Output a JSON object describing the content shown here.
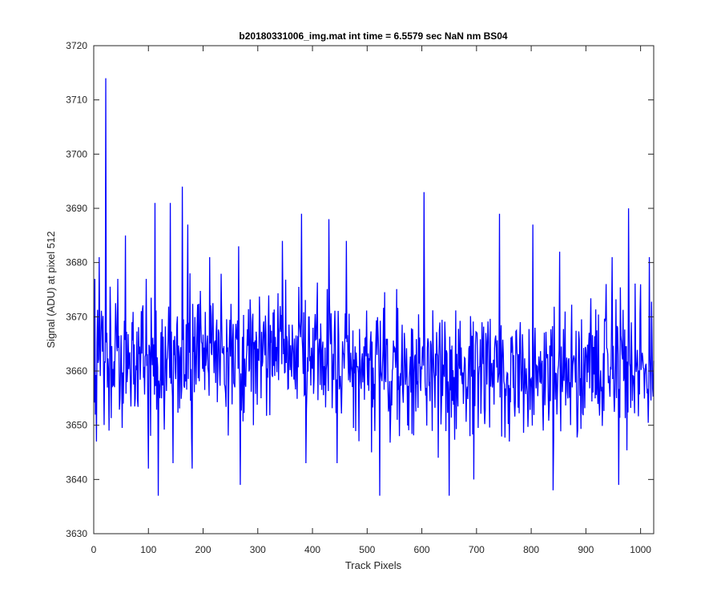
{
  "chart_data": {
    "type": "line",
    "title": "b20180331006_img.mat int time = 6.5579 sec  NaN nm BS04",
    "xlabel": "Track Pixels",
    "ylabel": "Signal (ADU) at pixel 512",
    "xlim": [
      0,
      1024
    ],
    "ylim": [
      3630,
      3720
    ],
    "xticks": [
      0,
      100,
      200,
      300,
      400,
      500,
      600,
      700,
      800,
      900,
      1000
    ],
    "yticks": [
      3630,
      3640,
      3650,
      3660,
      3670,
      3680,
      3690,
      3700,
      3710,
      3720
    ],
    "grid": false,
    "box": true,
    "series": [
      {
        "color": "#0000ff",
        "x_start": 1,
        "x_step": 1,
        "baseline": 3662,
        "noise_amplitude": 6,
        "peaks": [
          {
            "x": 2,
            "y": 3677
          },
          {
            "x": 5,
            "y": 3647
          },
          {
            "x": 10,
            "y": 3681
          },
          {
            "x": 22,
            "y": 3714
          },
          {
            "x": 28,
            "y": 3649
          },
          {
            "x": 44,
            "y": 3677
          },
          {
            "x": 58,
            "y": 3685
          },
          {
            "x": 96,
            "y": 3677
          },
          {
            "x": 100,
            "y": 3642
          },
          {
            "x": 112,
            "y": 3691
          },
          {
            "x": 118,
            "y": 3637
          },
          {
            "x": 140,
            "y": 3691
          },
          {
            "x": 145,
            "y": 3643
          },
          {
            "x": 162,
            "y": 3694
          },
          {
            "x": 172,
            "y": 3687
          },
          {
            "x": 180,
            "y": 3642
          },
          {
            "x": 212,
            "y": 3681
          },
          {
            "x": 265,
            "y": 3683
          },
          {
            "x": 268,
            "y": 3639
          },
          {
            "x": 292,
            "y": 3650
          },
          {
            "x": 312,
            "y": 3665
          },
          {
            "x": 345,
            "y": 3684
          },
          {
            "x": 380,
            "y": 3689
          },
          {
            "x": 388,
            "y": 3643
          },
          {
            "x": 430,
            "y": 3688
          },
          {
            "x": 445,
            "y": 3643
          },
          {
            "x": 462,
            "y": 3684
          },
          {
            "x": 508,
            "y": 3645
          },
          {
            "x": 523,
            "y": 3637
          },
          {
            "x": 555,
            "y": 3651
          },
          {
            "x": 604,
            "y": 3693
          },
          {
            "x": 630,
            "y": 3644
          },
          {
            "x": 650,
            "y": 3637
          },
          {
            "x": 688,
            "y": 3648
          },
          {
            "x": 695,
            "y": 3640
          },
          {
            "x": 742,
            "y": 3689
          },
          {
            "x": 760,
            "y": 3647
          },
          {
            "x": 803,
            "y": 3687
          },
          {
            "x": 840,
            "y": 3638
          },
          {
            "x": 852,
            "y": 3682
          },
          {
            "x": 948,
            "y": 3681
          },
          {
            "x": 960,
            "y": 3639
          },
          {
            "x": 978,
            "y": 3690
          },
          {
            "x": 1000,
            "y": 3676
          },
          {
            "x": 1016,
            "y": 3681
          }
        ]
      }
    ]
  }
}
